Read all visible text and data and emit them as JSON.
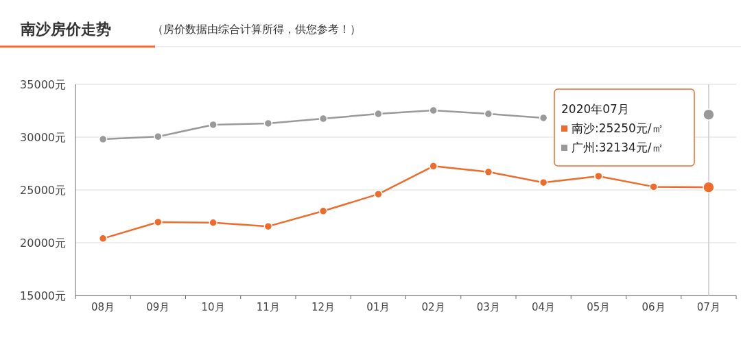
{
  "chart_data": {
    "type": "line",
    "title": "南沙房价走势",
    "subtitle": "（房价数据由综合计算所得，供您参考！）",
    "categories": [
      "08月",
      "09月",
      "10月",
      "11月",
      "12月",
      "01月",
      "02月",
      "03月",
      "04月",
      "05月",
      "06月",
      "07月"
    ],
    "ylim": [
      15000,
      35000
    ],
    "yticks": [
      {
        "value": 15000,
        "label": "15000元"
      },
      {
        "value": 20000,
        "label": "20000元"
      },
      {
        "value": 25000,
        "label": "25000元"
      },
      {
        "value": 30000,
        "label": "30000元"
      },
      {
        "value": 35000,
        "label": "35000元"
      }
    ],
    "grid": "y",
    "marker": "circle",
    "line_style": "solid",
    "annotations": [
      "2020年07月",
      "南沙:25250元/㎡",
      "广州:32134元/㎡"
    ],
    "ref_lines": [
      {
        "axis": "x",
        "value": "07月",
        "color": "#cccccc"
      }
    ],
    "series": [
      {
        "color": "#ee6b2a",
        "values": [
          20400,
          21950,
          21900,
          21550,
          23000,
          24600,
          27250,
          26700,
          25700,
          26300,
          25300,
          25250
        ]
      },
      {
        "color": "#999999",
        "values": [
          29800,
          30050,
          31170,
          31300,
          31750,
          32200,
          32530,
          32200,
          31820,
          null,
          null,
          32130
        ]
      }
    ]
  }
}
